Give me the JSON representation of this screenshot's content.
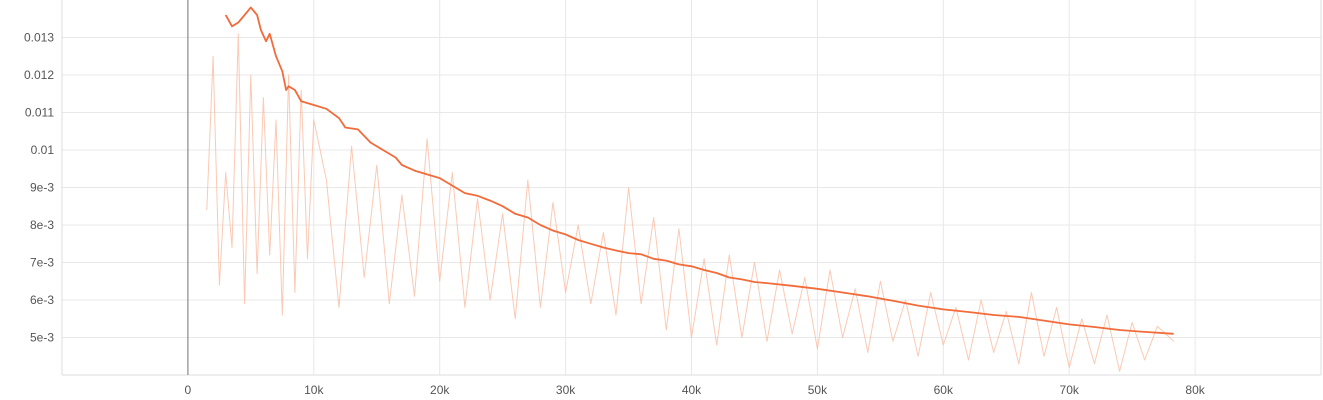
{
  "chart_data": {
    "type": "line",
    "title": "",
    "xlabel": "",
    "ylabel": "",
    "xlim": [
      -10000,
      90000
    ],
    "ylim": [
      0.004,
      0.014
    ],
    "grid": true,
    "x_ticks": [
      {
        "value": 0,
        "label": "0"
      },
      {
        "value": 10000,
        "label": "10k"
      },
      {
        "value": 20000,
        "label": "20k"
      },
      {
        "value": 30000,
        "label": "30k"
      },
      {
        "value": 40000,
        "label": "40k"
      },
      {
        "value": 50000,
        "label": "50k"
      },
      {
        "value": 60000,
        "label": "60k"
      },
      {
        "value": 70000,
        "label": "70k"
      },
      {
        "value": 80000,
        "label": "80k"
      }
    ],
    "y_ticks": [
      {
        "value": 0.005,
        "label": "5e-3"
      },
      {
        "value": 0.006,
        "label": "6e-3"
      },
      {
        "value": 0.007,
        "label": "7e-3"
      },
      {
        "value": 0.008,
        "label": "8e-3"
      },
      {
        "value": 0.009,
        "label": "9e-3"
      },
      {
        "value": 0.01,
        "label": "0.01"
      },
      {
        "value": 0.011,
        "label": "0.011"
      },
      {
        "value": 0.012,
        "label": "0.012"
      },
      {
        "value": 0.013,
        "label": "0.013"
      }
    ],
    "colors": {
      "smoothed": "#f26b3a",
      "raw": "#f9b79b"
    },
    "series": [
      {
        "role": "smoothed",
        "x": [
          3000,
          3500,
          4000,
          4500,
          5000,
          5500,
          5800,
          6200,
          6500,
          7000,
          7500,
          7800,
          8000,
          8500,
          9000,
          10000,
          11000,
          12000,
          12500,
          13500,
          14500,
          15500,
          16500,
          17000,
          18000,
          19000,
          20000,
          21000,
          22000,
          23000,
          24000,
          25000,
          26000,
          27000,
          28000,
          29000,
          30000,
          31000,
          32000,
          33000,
          34000,
          35000,
          36000,
          37000,
          38000,
          39000,
          40000,
          41000,
          42000,
          43000,
          44000,
          45000,
          46000,
          48000,
          50000,
          52000,
          54000,
          56000,
          58000,
          60000,
          62000,
          64000,
          66000,
          68000,
          70000,
          72000,
          74000,
          76000,
          78300
        ],
        "y": [
          0.0136,
          0.0133,
          0.0134,
          0.0136,
          0.0138,
          0.0136,
          0.0132,
          0.0129,
          0.0131,
          0.0125,
          0.0121,
          0.0116,
          0.0117,
          0.0116,
          0.0113,
          0.0112,
          0.0111,
          0.01085,
          0.0106,
          0.01055,
          0.0102,
          0.01,
          0.0098,
          0.0096,
          0.00945,
          0.00935,
          0.00925,
          0.00905,
          0.00885,
          0.00878,
          0.00865,
          0.0085,
          0.0083,
          0.0082,
          0.008,
          0.00785,
          0.00775,
          0.0076,
          0.0075,
          0.0074,
          0.00732,
          0.00725,
          0.00722,
          0.0071,
          0.00705,
          0.00695,
          0.0069,
          0.0068,
          0.00672,
          0.0066,
          0.00655,
          0.00648,
          0.00645,
          0.00638,
          0.0063,
          0.0062,
          0.0061,
          0.00598,
          0.00585,
          0.00575,
          0.00568,
          0.0056,
          0.00555,
          0.00545,
          0.00535,
          0.00528,
          0.0052,
          0.00515,
          0.0051
        ]
      },
      {
        "role": "raw",
        "x": [
          1500,
          2000,
          2500,
          3000,
          3500,
          4000,
          4500,
          5000,
          5500,
          6000,
          6500,
          7000,
          7500,
          8000,
          8500,
          9000,
          9500,
          10000,
          11000,
          12000,
          13000,
          14000,
          15000,
          16000,
          17000,
          18000,
          19000,
          20000,
          21000,
          22000,
          23000,
          24000,
          25000,
          26000,
          27000,
          28000,
          29000,
          30000,
          31000,
          32000,
          33000,
          34000,
          35000,
          36000,
          37000,
          38000,
          39000,
          40000,
          41000,
          42000,
          43000,
          44000,
          45000,
          46000,
          47000,
          48000,
          49000,
          50000,
          51000,
          52000,
          53000,
          54000,
          55000,
          56000,
          57000,
          58000,
          59000,
          60000,
          61000,
          62000,
          63000,
          64000,
          65000,
          66000,
          67000,
          68000,
          69000,
          70000,
          71000,
          72000,
          73000,
          74000,
          75000,
          76000,
          77000,
          78300
        ],
        "y": [
          0.0084,
          0.0125,
          0.0064,
          0.0094,
          0.0074,
          0.0131,
          0.0059,
          0.012,
          0.0067,
          0.0114,
          0.0072,
          0.0108,
          0.0056,
          0.012,
          0.0062,
          0.0116,
          0.0071,
          0.0108,
          0.0092,
          0.0058,
          0.0101,
          0.0066,
          0.0096,
          0.0059,
          0.0088,
          0.0061,
          0.0103,
          0.0065,
          0.0094,
          0.0058,
          0.0087,
          0.006,
          0.0083,
          0.0055,
          0.0092,
          0.0058,
          0.0086,
          0.0062,
          0.008,
          0.0059,
          0.0078,
          0.0056,
          0.009,
          0.0059,
          0.0082,
          0.0052,
          0.0079,
          0.005,
          0.0071,
          0.0048,
          0.0072,
          0.005,
          0.007,
          0.0049,
          0.0068,
          0.0051,
          0.0066,
          0.0047,
          0.0068,
          0.005,
          0.0063,
          0.0046,
          0.0065,
          0.0049,
          0.006,
          0.0045,
          0.0062,
          0.0048,
          0.0058,
          0.0044,
          0.006,
          0.0046,
          0.0057,
          0.0043,
          0.0062,
          0.0045,
          0.0058,
          0.0042,
          0.0055,
          0.0043,
          0.0056,
          0.0041,
          0.0054,
          0.0044,
          0.0053,
          0.0049
        ]
      }
    ]
  }
}
